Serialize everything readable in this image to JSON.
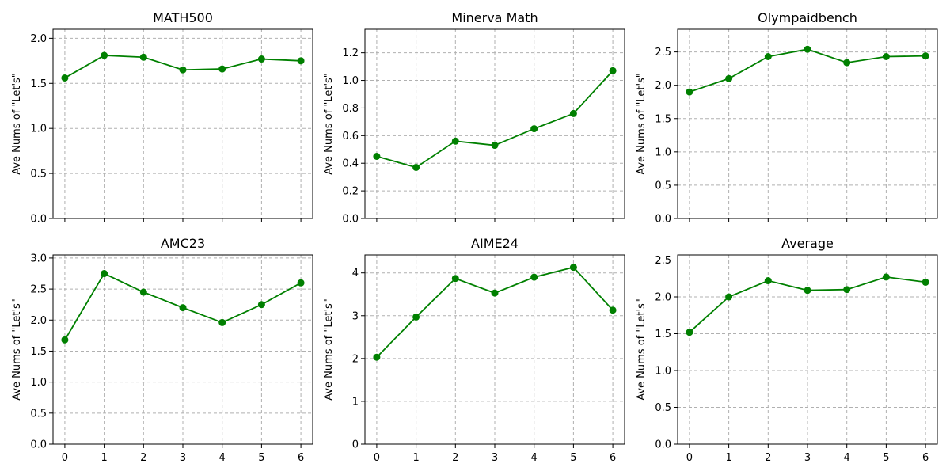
{
  "figure": {
    "series_color": "#008000",
    "x_ticks": [
      0,
      1,
      2,
      3,
      4,
      5,
      6
    ]
  },
  "chart_data": [
    {
      "type": "line",
      "title": "MATH500",
      "xlabel": "",
      "ylabel": "Ave Nums of \"Let's\"",
      "grid": true,
      "x": [
        0,
        1,
        2,
        3,
        4,
        5,
        6
      ],
      "values": [
        1.56,
        1.81,
        1.79,
        1.65,
        1.66,
        1.77,
        1.75
      ],
      "xlim": [
        -0.3,
        6.3
      ],
      "ylim": [
        0,
        2.1
      ],
      "yticks": [
        0.0,
        0.5,
        1.0,
        1.5,
        2.0
      ],
      "yticklabels": [
        "0.0",
        "0.5",
        "1.0",
        "1.5",
        "2.0"
      ],
      "show_xticklabels": false
    },
    {
      "type": "line",
      "title": "Minerva Math",
      "xlabel": "",
      "ylabel": "Ave Nums of \"Let's\"",
      "grid": true,
      "x": [
        0,
        1,
        2,
        3,
        4,
        5,
        6
      ],
      "values": [
        0.45,
        0.37,
        0.56,
        0.53,
        0.65,
        0.76,
        1.07
      ],
      "xlim": [
        -0.3,
        6.3
      ],
      "ylim": [
        0,
        1.37
      ],
      "yticks": [
        0.0,
        0.2,
        0.4,
        0.6,
        0.8,
        1.0,
        1.2
      ],
      "yticklabels": [
        "0.0",
        "0.2",
        "0.4",
        "0.6",
        "0.8",
        "1.0",
        "1.2"
      ],
      "show_xticklabels": false
    },
    {
      "type": "line",
      "title": "Olympaidbench",
      "xlabel": "",
      "ylabel": "Ave Nums of \"Let's\"",
      "grid": true,
      "x": [
        0,
        1,
        2,
        3,
        4,
        5,
        6
      ],
      "values": [
        1.9,
        2.1,
        2.43,
        2.54,
        2.34,
        2.43,
        2.44
      ],
      "xlim": [
        -0.3,
        6.3
      ],
      "ylim": [
        0,
        2.84
      ],
      "yticks": [
        0.0,
        0.5,
        1.0,
        1.5,
        2.0,
        2.5
      ],
      "yticklabels": [
        "0.0",
        "0.5",
        "1.0",
        "1.5",
        "2.0",
        "2.5"
      ],
      "show_xticklabels": false
    },
    {
      "type": "line",
      "title": "AMC23",
      "xlabel": "",
      "ylabel": "Ave Nums of \"Let's\"",
      "grid": true,
      "x": [
        0,
        1,
        2,
        3,
        4,
        5,
        6
      ],
      "values": [
        1.68,
        2.75,
        2.45,
        2.2,
        1.96,
        2.25,
        2.6
      ],
      "xlim": [
        -0.3,
        6.3
      ],
      "ylim": [
        0,
        3.05
      ],
      "yticks": [
        0.0,
        0.5,
        1.0,
        1.5,
        2.0,
        2.5,
        3.0
      ],
      "yticklabels": [
        "0.0",
        "0.5",
        "1.0",
        "1.5",
        "2.0",
        "2.5",
        "3.0"
      ],
      "show_xticklabels": true
    },
    {
      "type": "line",
      "title": "AIME24",
      "xlabel": "",
      "ylabel": "Ave Nums of \"Let's\"",
      "grid": true,
      "x": [
        0,
        1,
        2,
        3,
        4,
        5,
        6
      ],
      "values": [
        2.03,
        2.97,
        3.87,
        3.53,
        3.9,
        4.13,
        3.13
      ],
      "xlim": [
        -0.3,
        6.3
      ],
      "ylim": [
        0,
        4.42
      ],
      "yticks": [
        0,
        1,
        2,
        3,
        4
      ],
      "yticklabels": [
        "0",
        "1",
        "2",
        "3",
        "4"
      ],
      "show_xticklabels": true
    },
    {
      "type": "line",
      "title": "Average",
      "xlabel": "",
      "ylabel": "Ave Nums of \"Let's\"",
      "grid": true,
      "x": [
        0,
        1,
        2,
        3,
        4,
        5,
        6
      ],
      "values": [
        1.52,
        2.0,
        2.22,
        2.09,
        2.1,
        2.27,
        2.2
      ],
      "xlim": [
        -0.3,
        6.3
      ],
      "ylim": [
        0,
        2.57
      ],
      "yticks": [
        0.0,
        0.5,
        1.0,
        1.5,
        2.0,
        2.5
      ],
      "yticklabels": [
        "0.0",
        "0.5",
        "1.0",
        "1.5",
        "2.0",
        "2.5"
      ],
      "show_xticklabels": true
    }
  ]
}
